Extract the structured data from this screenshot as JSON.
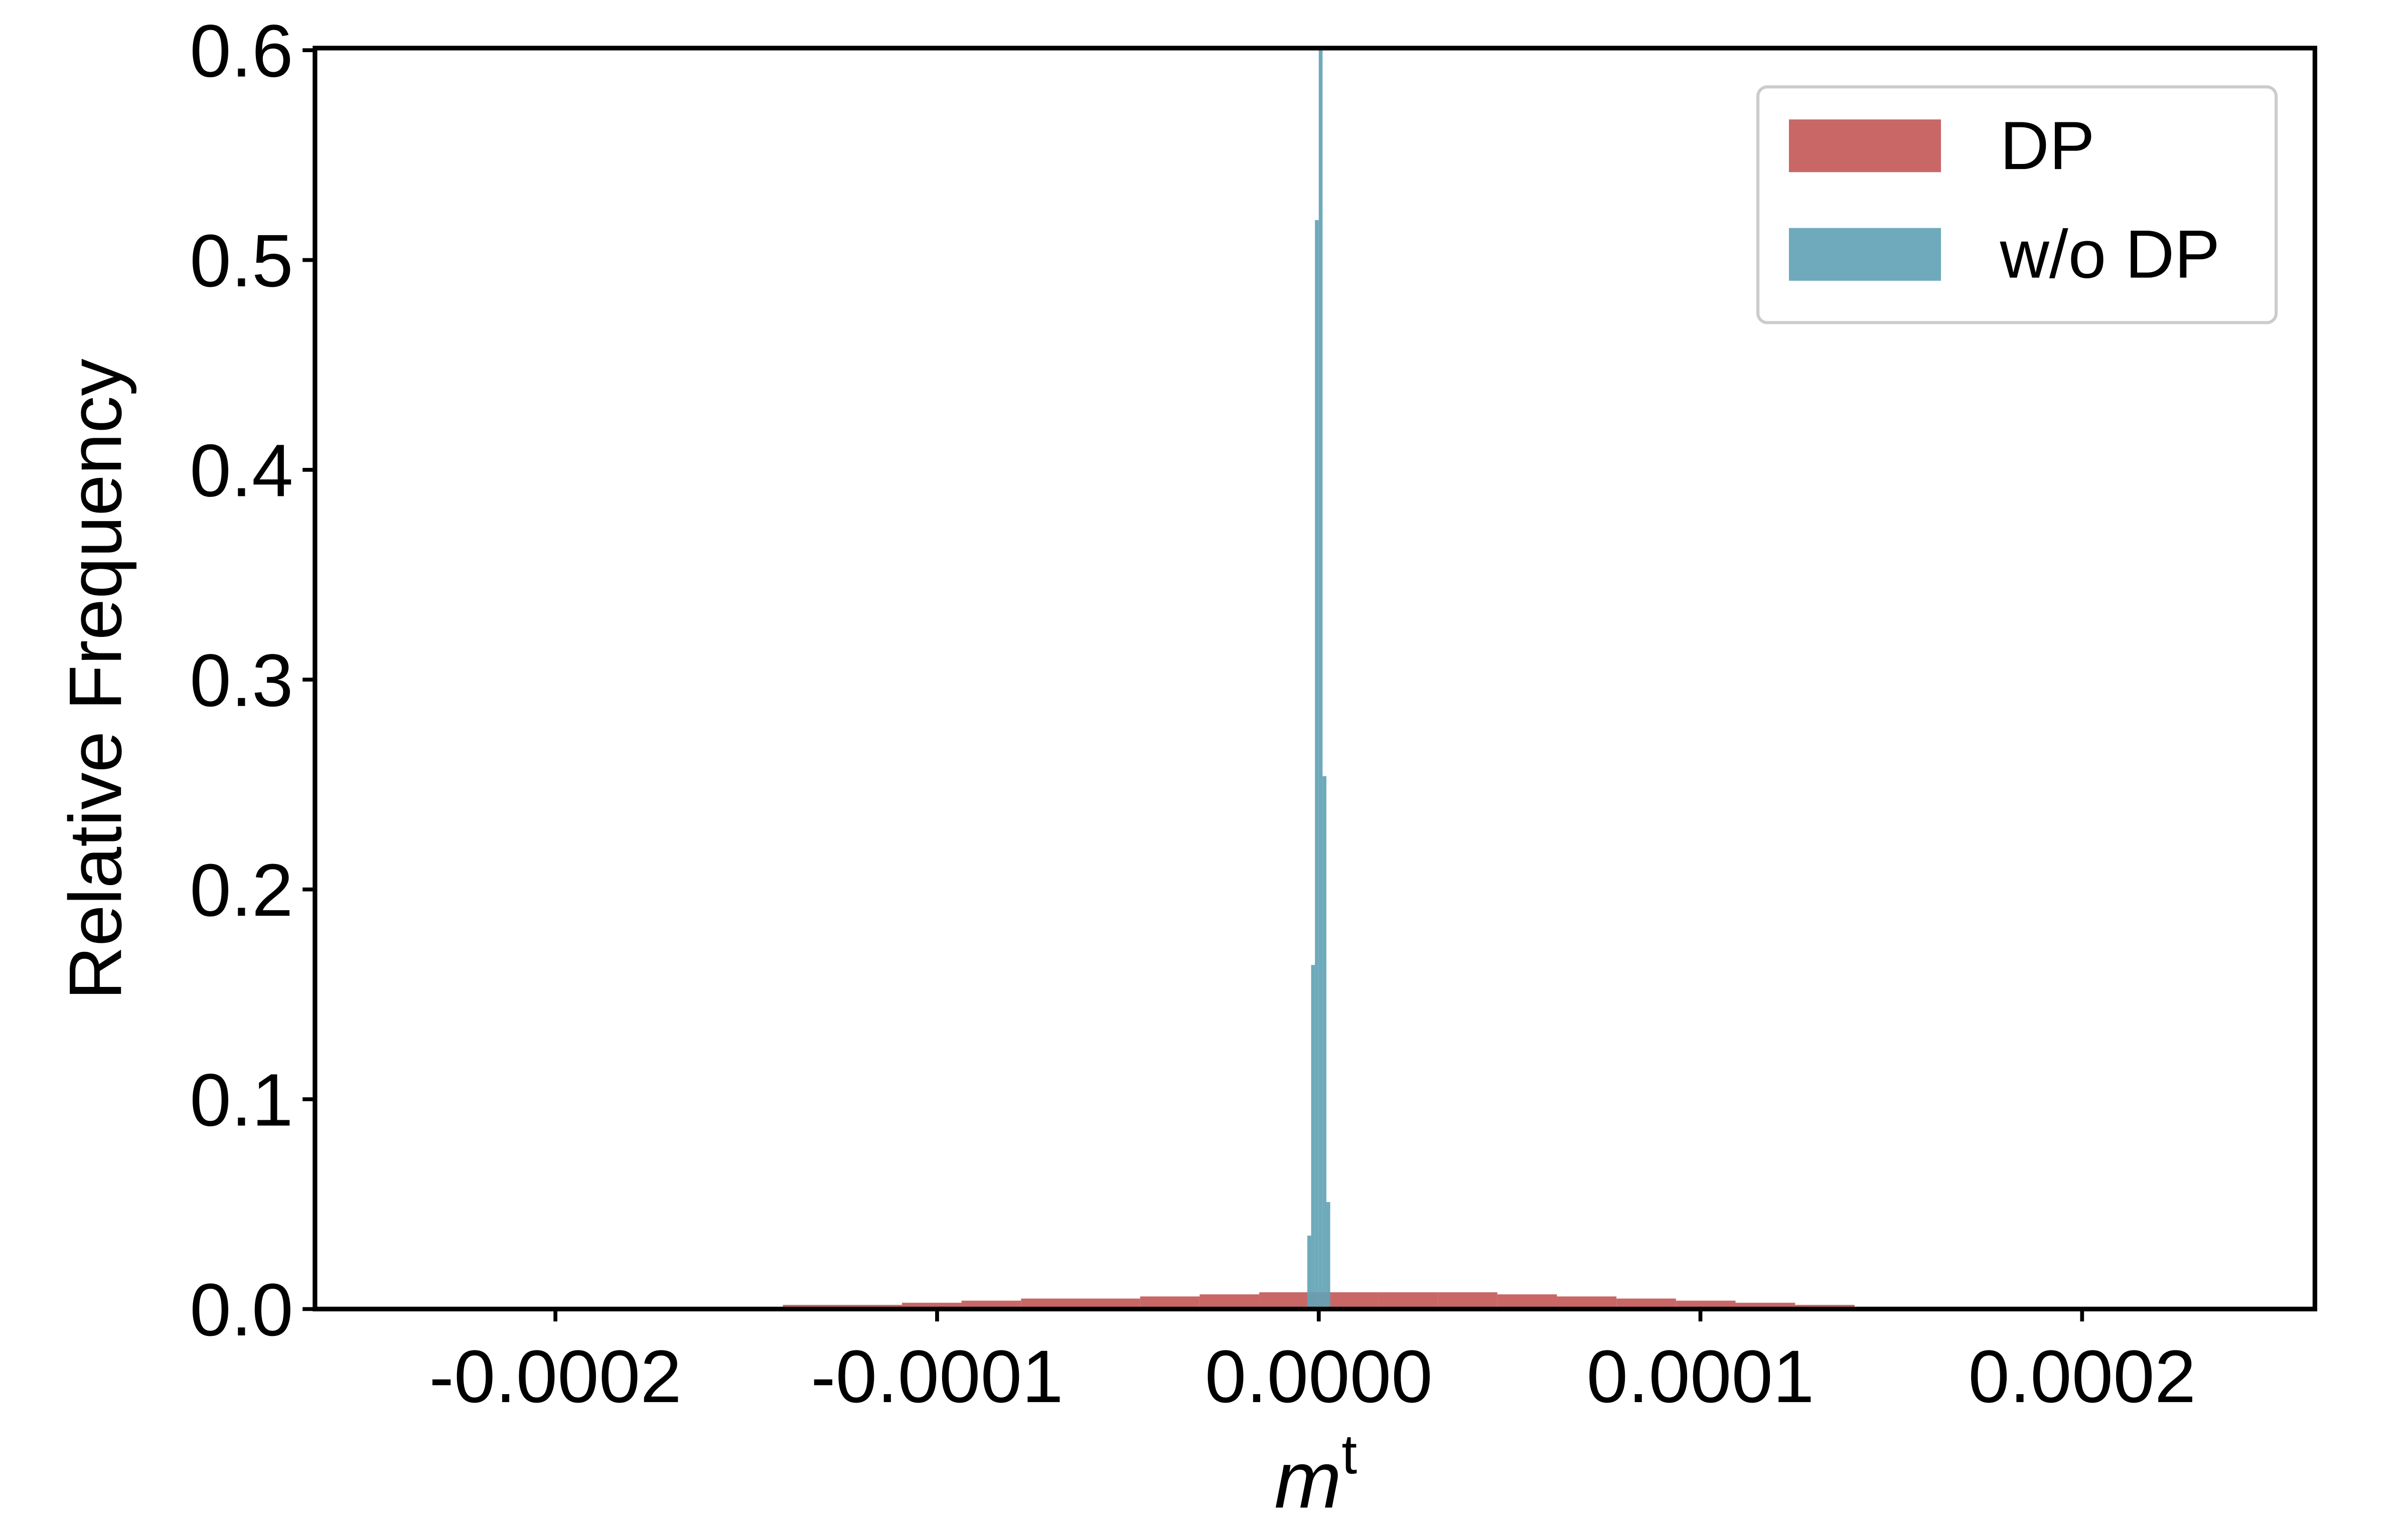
{
  "chart_data": {
    "type": "histogram",
    "ylabel": "Relative Frequency",
    "xlabel": "m",
    "xlabel_superscript": "t",
    "xlim": [
      -0.000263,
      0.000261
    ],
    "ylim": [
      0,
      0.601
    ],
    "xticks": [
      -0.0002,
      -0.0001,
      {
        "value": 0,
        "label": "0.0000"
      },
      0.0001,
      0.0002
    ],
    "yticks": [
      {
        "value": 0,
        "label": "0.0"
      },
      0.1,
      0.2,
      0.3,
      0.4,
      0.5,
      0.6
    ],
    "legend": "upper right",
    "series": [
      {
        "name": "DP",
        "color": "#c45a5a",
        "bins": [
          -0.000156,
          -0.0001404,
          -0.0001248,
          -0.0001092,
          -9.36e-05,
          -7.8e-05,
          -6.24e-05,
          -4.68e-05,
          -3.12e-05,
          -1.56e-05,
          0,
          1.56e-05,
          3.12e-05,
          4.68e-05,
          6.24e-05,
          7.8e-05,
          9.36e-05,
          0.0001092,
          0.0001248,
          0.0001404,
          0.000156,
          0.0001716
        ],
        "values": [
          0.001,
          0.002,
          0.002,
          0.003,
          0.004,
          0.005,
          0.005,
          0.006,
          0.007,
          0.008,
          0.008,
          0.008,
          0.008,
          0.007,
          0.006,
          0.005,
          0.004,
          0.003,
          0.002,
          0.001,
          0.001
        ]
      },
      {
        "name": "w/o DP",
        "color": "#62a3b5",
        "bins": [
          -3e-06,
          -2e-06,
          -1e-06,
          0,
          1e-06,
          2e-06,
          3e-06
        ],
        "values": [
          0.035,
          0.164,
          0.519,
          0.6,
          0.254,
          0.051
        ]
      }
    ]
  }
}
